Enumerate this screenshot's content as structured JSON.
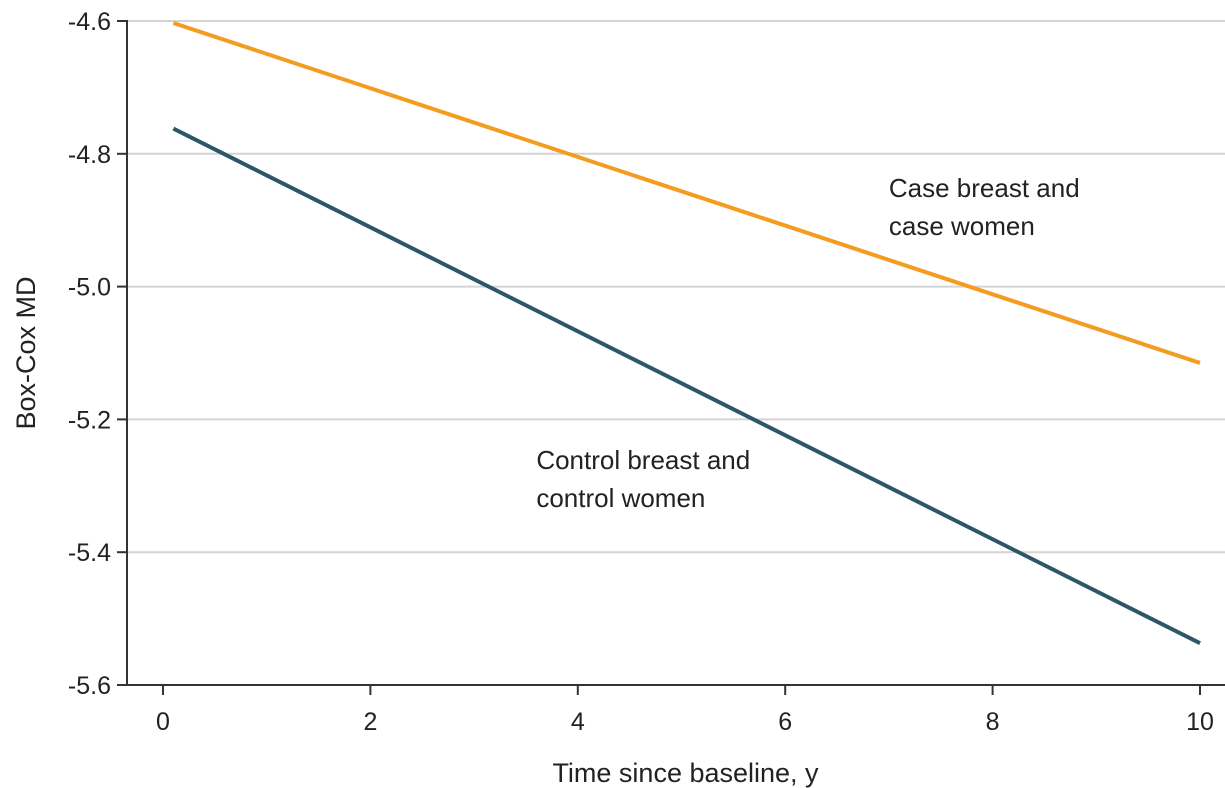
{
  "chart_data": {
    "type": "line",
    "title": "",
    "xlabel": "Time since baseline, y",
    "ylabel": "Box-Cox MD",
    "xlim": [
      0,
      10
    ],
    "ylim": [
      -5.6,
      -4.6
    ],
    "xticks": [
      0,
      2,
      4,
      6,
      8,
      10
    ],
    "xtick_labels": [
      "0",
      "2",
      "4",
      "6",
      "8",
      "10"
    ],
    "yticks": [
      -4.6,
      -4.8,
      -5.0,
      -5.2,
      -5.4,
      -5.6
    ],
    "ytick_labels": [
      "-4.6",
      "-4.8",
      "-5.0",
      "-5.2",
      "-5.4",
      "-5.6"
    ],
    "grid": "horizontal",
    "legend": "none",
    "series": [
      {
        "x": [
          0.1,
          10
        ],
        "y": [
          -4.603,
          -5.115
        ],
        "color": "#F39C1F",
        "label_lines": [
          "Case breast and",
          "case women"
        ],
        "label_anchor": {
          "x": 7.0,
          "y": -4.865
        }
      },
      {
        "x": [
          0.1,
          10
        ],
        "y": [
          -4.762,
          -5.537
        ],
        "color": "#2D5766",
        "label_lines": [
          "Control breast and",
          "control women"
        ],
        "label_anchor": {
          "x": 3.6,
          "y": -5.275
        }
      }
    ]
  },
  "colors": {
    "grid": "#d4d4d4",
    "axis": "#333333",
    "text": "#222222"
  }
}
